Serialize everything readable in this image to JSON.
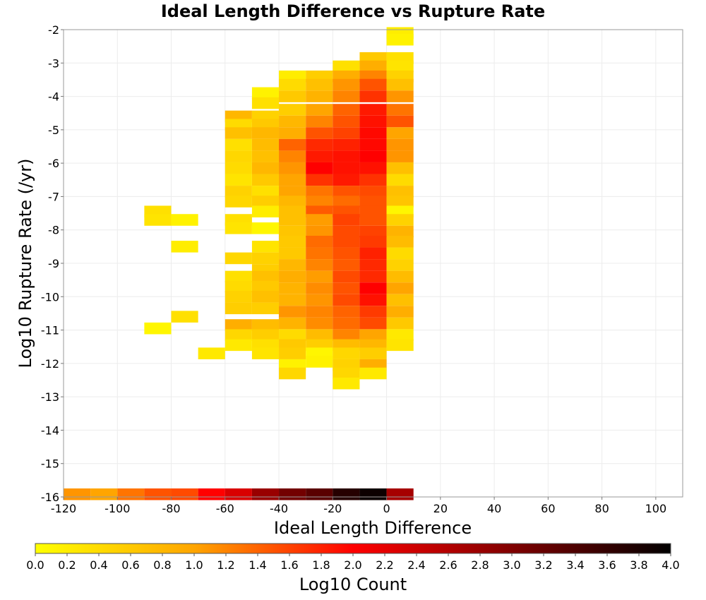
{
  "chart_data": {
    "type": "heatmap",
    "title": "Ideal Length Difference vs Rupture Rate",
    "xlabel": "Ideal Length Difference",
    "ylabel": "Log10 Rupture Rate (/yr)",
    "colorbar_label": "Log10 Count",
    "xlim": [
      -120,
      110
    ],
    "ylim": [
      -16,
      -2
    ],
    "x_ticks": [
      "-120",
      "-100",
      "-80",
      "-60",
      "-40",
      "-20",
      "0",
      "20",
      "40",
      "60",
      "80",
      "100"
    ],
    "y_ticks": [
      "-2",
      "-3",
      "-4",
      "-5",
      "-6",
      "-7",
      "-8",
      "-9",
      "-10",
      "-11",
      "-12",
      "-13",
      "-14",
      "-15",
      "-16"
    ],
    "colorbar_ticks": [
      "0.0",
      "0.2",
      "0.4",
      "0.6",
      "0.8",
      "1.0",
      "1.2",
      "1.4",
      "1.6",
      "1.8",
      "2.0",
      "2.2",
      "2.4",
      "2.6",
      "2.8",
      "3.0",
      "3.2",
      "3.4",
      "3.6",
      "3.8",
      "4.0"
    ],
    "colorbar_range": [
      0,
      4
    ],
    "grid": true,
    "bin_width_x": 10,
    "bin_height_y": 0.35,
    "x_bin_centers": [
      -115,
      -105,
      -95,
      -85,
      -75,
      -65,
      -55,
      -45,
      -35,
      -25,
      -15,
      -5,
      5
    ],
    "cells": [
      {
        "x": 5,
        "y": -2.1,
        "v": 0.2
      },
      {
        "x": 5,
        "y": -2.3,
        "v": 0.15
      },
      {
        "x": -5,
        "y": -2.85,
        "v": 0.6
      },
      {
        "x": 5,
        "y": -2.85,
        "v": 0.35
      },
      {
        "x": -15,
        "y": -3.1,
        "v": 0.35
      },
      {
        "x": -5,
        "y": -3.1,
        "v": 0.9
      },
      {
        "x": 5,
        "y": -3.1,
        "v": 0.3
      },
      {
        "x": -35,
        "y": -3.4,
        "v": 0.2
      },
      {
        "x": -25,
        "y": -3.4,
        "v": 0.55
      },
      {
        "x": -15,
        "y": -3.4,
        "v": 0.9
      },
      {
        "x": -5,
        "y": -3.4,
        "v": 1.2
      },
      {
        "x": 5,
        "y": -3.4,
        "v": 0.5
      },
      {
        "x": -45,
        "y": -3.9,
        "v": 0.15
      },
      {
        "x": -35,
        "y": -3.65,
        "v": 0.4
      },
      {
        "x": -25,
        "y": -3.65,
        "v": 0.7
      },
      {
        "x": -15,
        "y": -3.65,
        "v": 1.1
      },
      {
        "x": -5,
        "y": -3.65,
        "v": 1.5
      },
      {
        "x": 5,
        "y": -3.65,
        "v": 0.7
      },
      {
        "x": -45,
        "y": -4.2,
        "v": 0.35
      },
      {
        "x": -35,
        "y": -4.0,
        "v": 0.6
      },
      {
        "x": -25,
        "y": -4.0,
        "v": 0.85
      },
      {
        "x": -15,
        "y": -4.0,
        "v": 1.2
      },
      {
        "x": -5,
        "y": -4.0,
        "v": 1.7
      },
      {
        "x": 5,
        "y": -4.0,
        "v": 1.1
      },
      {
        "x": -55,
        "y": -4.6,
        "v": 0.8
      },
      {
        "x": -45,
        "y": -4.6,
        "v": 0.5
      },
      {
        "x": -35,
        "y": -4.4,
        "v": 0.55
      },
      {
        "x": -25,
        "y": -4.4,
        "v": 1.0
      },
      {
        "x": -15,
        "y": -4.4,
        "v": 1.4
      },
      {
        "x": -5,
        "y": -4.4,
        "v": 1.85
      },
      {
        "x": 5,
        "y": -4.4,
        "v": 1.3
      },
      {
        "x": -55,
        "y": -4.85,
        "v": 0.4
      },
      {
        "x": -45,
        "y": -4.85,
        "v": 0.6
      },
      {
        "x": -35,
        "y": -4.75,
        "v": 0.8
      },
      {
        "x": -25,
        "y": -4.75,
        "v": 1.2
      },
      {
        "x": -15,
        "y": -4.75,
        "v": 1.5
      },
      {
        "x": -5,
        "y": -4.75,
        "v": 1.9
      },
      {
        "x": 5,
        "y": -4.75,
        "v": 1.5
      },
      {
        "x": -55,
        "y": -5.1,
        "v": 0.7
      },
      {
        "x": -45,
        "y": -5.1,
        "v": 0.8
      },
      {
        "x": -35,
        "y": -5.1,
        "v": 0.9
      },
      {
        "x": -25,
        "y": -5.1,
        "v": 1.5
      },
      {
        "x": -15,
        "y": -5.1,
        "v": 1.6
      },
      {
        "x": -5,
        "y": -5.1,
        "v": 1.95
      },
      {
        "x": 5,
        "y": -5.1,
        "v": 1.0
      },
      {
        "x": -55,
        "y": -5.45,
        "v": 0.35
      },
      {
        "x": -45,
        "y": -5.45,
        "v": 0.75
      },
      {
        "x": -35,
        "y": -5.45,
        "v": 1.4
      },
      {
        "x": -25,
        "y": -5.45,
        "v": 1.75
      },
      {
        "x": -15,
        "y": -5.45,
        "v": 1.8
      },
      {
        "x": -5,
        "y": -5.45,
        "v": 1.95
      },
      {
        "x": 5,
        "y": -5.45,
        "v": 1.1
      },
      {
        "x": -55,
        "y": -5.8,
        "v": 0.45
      },
      {
        "x": -45,
        "y": -5.8,
        "v": 0.7
      },
      {
        "x": -35,
        "y": -5.8,
        "v": 1.2
      },
      {
        "x": -25,
        "y": -5.8,
        "v": 1.85
      },
      {
        "x": -15,
        "y": -5.8,
        "v": 1.9
      },
      {
        "x": -5,
        "y": -5.8,
        "v": 2.0
      },
      {
        "x": 5,
        "y": -5.8,
        "v": 1.1
      },
      {
        "x": -55,
        "y": -6.15,
        "v": 0.4
      },
      {
        "x": -45,
        "y": -6.15,
        "v": 0.8
      },
      {
        "x": -35,
        "y": -6.15,
        "v": 1.1
      },
      {
        "x": -25,
        "y": -6.15,
        "v": 2.0
      },
      {
        "x": -15,
        "y": -6.15,
        "v": 1.9
      },
      {
        "x": -5,
        "y": -6.15,
        "v": 1.9
      },
      {
        "x": 5,
        "y": -6.15,
        "v": 0.7
      },
      {
        "x": -55,
        "y": -6.5,
        "v": 0.3
      },
      {
        "x": -45,
        "y": -6.5,
        "v": 0.6
      },
      {
        "x": -35,
        "y": -6.5,
        "v": 1.0
      },
      {
        "x": -25,
        "y": -6.5,
        "v": 1.7
      },
      {
        "x": -15,
        "y": -6.5,
        "v": 1.85
      },
      {
        "x": -5,
        "y": -6.5,
        "v": 1.7
      },
      {
        "x": 5,
        "y": -6.5,
        "v": 0.4
      },
      {
        "x": -55,
        "y": -6.85,
        "v": 0.5
      },
      {
        "x": -45,
        "y": -6.85,
        "v": 0.35
      },
      {
        "x": -35,
        "y": -6.85,
        "v": 1.0
      },
      {
        "x": -25,
        "y": -6.85,
        "v": 1.3
      },
      {
        "x": -15,
        "y": -6.85,
        "v": 1.5
      },
      {
        "x": -5,
        "y": -6.85,
        "v": 1.55
      },
      {
        "x": 5,
        "y": -6.85,
        "v": 0.7
      },
      {
        "x": -55,
        "y": -7.15,
        "v": 0.45
      },
      {
        "x": -45,
        "y": -7.15,
        "v": 0.55
      },
      {
        "x": -35,
        "y": -7.15,
        "v": 0.8
      },
      {
        "x": -25,
        "y": -7.15,
        "v": 1.2
      },
      {
        "x": -15,
        "y": -7.15,
        "v": 1.35
      },
      {
        "x": -5,
        "y": -7.15,
        "v": 1.5
      },
      {
        "x": 5,
        "y": -7.15,
        "v": 0.65
      },
      {
        "x": -85,
        "y": -7.45,
        "v": 0.35
      },
      {
        "x": -45,
        "y": -7.45,
        "v": 0.2
      },
      {
        "x": -35,
        "y": -7.45,
        "v": 0.7
      },
      {
        "x": -25,
        "y": -7.45,
        "v": 1.45
      },
      {
        "x": -15,
        "y": -7.45,
        "v": 1.5
      },
      {
        "x": -5,
        "y": -7.45,
        "v": 1.5
      },
      {
        "x": 5,
        "y": -7.45,
        "v": 0.1
      },
      {
        "x": -85,
        "y": -7.7,
        "v": 0.3
      },
      {
        "x": -75,
        "y": -7.7,
        "v": 0.15
      },
      {
        "x": -55,
        "y": -7.7,
        "v": 0.35
      },
      {
        "x": -35,
        "y": -7.7,
        "v": 0.7
      },
      {
        "x": -25,
        "y": -7.7,
        "v": 1.05
      },
      {
        "x": -15,
        "y": -7.7,
        "v": 1.6
      },
      {
        "x": -5,
        "y": -7.7,
        "v": 1.5
      },
      {
        "x": 5,
        "y": -7.7,
        "v": 0.5
      },
      {
        "x": -55,
        "y": -7.95,
        "v": 0.3
      },
      {
        "x": -45,
        "y": -7.95,
        "v": 0.1
      },
      {
        "x": -35,
        "y": -8.05,
        "v": 0.65
      },
      {
        "x": -25,
        "y": -8.05,
        "v": 1.1
      },
      {
        "x": -15,
        "y": -8.05,
        "v": 1.55
      },
      {
        "x": -5,
        "y": -8.05,
        "v": 1.6
      },
      {
        "x": 5,
        "y": -8.05,
        "v": 0.85
      },
      {
        "x": -35,
        "y": -8.35,
        "v": 0.6
      },
      {
        "x": -25,
        "y": -8.35,
        "v": 1.35
      },
      {
        "x": -15,
        "y": -8.35,
        "v": 1.55
      },
      {
        "x": -5,
        "y": -8.35,
        "v": 1.65
      },
      {
        "x": 5,
        "y": -8.35,
        "v": 0.75
      },
      {
        "x": -75,
        "y": -8.5,
        "v": 0.2
      },
      {
        "x": -45,
        "y": -8.5,
        "v": 0.3
      },
      {
        "x": -35,
        "y": -8.7,
        "v": 0.6
      },
      {
        "x": -25,
        "y": -8.7,
        "v": 1.3
      },
      {
        "x": -15,
        "y": -8.7,
        "v": 1.5
      },
      {
        "x": -5,
        "y": -8.7,
        "v": 1.8
      },
      {
        "x": 5,
        "y": -8.7,
        "v": 0.4
      },
      {
        "x": -55,
        "y": -8.85,
        "v": 0.45
      },
      {
        "x": -45,
        "y": -8.85,
        "v": 0.5
      },
      {
        "x": -35,
        "y": -9.05,
        "v": 0.8
      },
      {
        "x": -25,
        "y": -9.05,
        "v": 1.2
      },
      {
        "x": -15,
        "y": -9.05,
        "v": 1.45
      },
      {
        "x": -5,
        "y": -9.05,
        "v": 1.75
      },
      {
        "x": 5,
        "y": -9.05,
        "v": 0.5
      },
      {
        "x": -45,
        "y": -9.2,
        "v": 0.55
      },
      {
        "x": -55,
        "y": -9.4,
        "v": 0.35
      },
      {
        "x": -45,
        "y": -9.4,
        "v": 0.7
      },
      {
        "x": -35,
        "y": -9.4,
        "v": 0.9
      },
      {
        "x": -25,
        "y": -9.4,
        "v": 1.05
      },
      {
        "x": -15,
        "y": -9.4,
        "v": 1.55
      },
      {
        "x": -5,
        "y": -9.4,
        "v": 1.75
      },
      {
        "x": 5,
        "y": -9.4,
        "v": 0.75
      },
      {
        "x": -55,
        "y": -9.7,
        "v": 0.4
      },
      {
        "x": -45,
        "y": -9.7,
        "v": 0.6
      },
      {
        "x": -35,
        "y": -9.75,
        "v": 0.85
      },
      {
        "x": -25,
        "y": -9.75,
        "v": 1.15
      },
      {
        "x": -15,
        "y": -9.75,
        "v": 1.5
      },
      {
        "x": -5,
        "y": -9.75,
        "v": 2.0
      },
      {
        "x": 5,
        "y": -9.75,
        "v": 1.0
      },
      {
        "x": -55,
        "y": -10.0,
        "v": 0.5
      },
      {
        "x": -45,
        "y": -10.0,
        "v": 0.7
      },
      {
        "x": -35,
        "y": -10.1,
        "v": 0.85
      },
      {
        "x": -25,
        "y": -10.1,
        "v": 1.1
      },
      {
        "x": -15,
        "y": -10.1,
        "v": 1.55
      },
      {
        "x": -5,
        "y": -10.1,
        "v": 1.9
      },
      {
        "x": 5,
        "y": -10.1,
        "v": 0.7
      },
      {
        "x": -55,
        "y": -10.35,
        "v": 0.55
      },
      {
        "x": -45,
        "y": -10.35,
        "v": 0.55
      },
      {
        "x": -35,
        "y": -10.45,
        "v": 1.1
      },
      {
        "x": -25,
        "y": -10.45,
        "v": 1.2
      },
      {
        "x": -15,
        "y": -10.45,
        "v": 1.4
      },
      {
        "x": -5,
        "y": -10.45,
        "v": 1.65
      },
      {
        "x": 5,
        "y": -10.45,
        "v": 0.9
      },
      {
        "x": -75,
        "y": -10.6,
        "v": 0.35
      },
      {
        "x": -85,
        "y": -10.95,
        "v": 0.1
      },
      {
        "x": -55,
        "y": -10.85,
        "v": 0.9
      },
      {
        "x": -45,
        "y": -10.85,
        "v": 0.75
      },
      {
        "x": -35,
        "y": -10.8,
        "v": 0.85
      },
      {
        "x": -25,
        "y": -10.8,
        "v": 1.15
      },
      {
        "x": -15,
        "y": -10.8,
        "v": 1.35
      },
      {
        "x": -5,
        "y": -10.8,
        "v": 1.55
      },
      {
        "x": 5,
        "y": -10.8,
        "v": 0.6
      },
      {
        "x": -55,
        "y": -11.15,
        "v": 0.45
      },
      {
        "x": -45,
        "y": -11.15,
        "v": 0.55
      },
      {
        "x": -35,
        "y": -11.15,
        "v": 0.4
      },
      {
        "x": -25,
        "y": -11.15,
        "v": 0.75
      },
      {
        "x": -15,
        "y": -11.15,
        "v": 1.2
      },
      {
        "x": -5,
        "y": -11.15,
        "v": 1.0
      },
      {
        "x": 5,
        "y": -11.15,
        "v": 0.25
      },
      {
        "x": -55,
        "y": -11.45,
        "v": 0.25
      },
      {
        "x": -45,
        "y": -11.45,
        "v": 0.35
      },
      {
        "x": -35,
        "y": -11.45,
        "v": 0.6
      },
      {
        "x": -25,
        "y": -11.45,
        "v": 0.55
      },
      {
        "x": -15,
        "y": -11.45,
        "v": 0.75
      },
      {
        "x": -5,
        "y": -11.45,
        "v": 0.8
      },
      {
        "x": 5,
        "y": -11.45,
        "v": 0.3
      },
      {
        "x": -65,
        "y": -11.7,
        "v": 0.25
      },
      {
        "x": -45,
        "y": -11.7,
        "v": 0.3
      },
      {
        "x": -35,
        "y": -11.7,
        "v": 0.55
      },
      {
        "x": -25,
        "y": -11.7,
        "v": 0.1
      },
      {
        "x": -15,
        "y": -11.7,
        "v": 0.45
      },
      {
        "x": -5,
        "y": -11.7,
        "v": 0.55
      },
      {
        "x": -35,
        "y": -12.05,
        "v": 0.15
      },
      {
        "x": -25,
        "y": -11.95,
        "v": 0.15
      },
      {
        "x": -15,
        "y": -12.05,
        "v": 0.5
      },
      {
        "x": -5,
        "y": -12.05,
        "v": 0.9
      },
      {
        "x": -35,
        "y": -12.3,
        "v": 0.45
      },
      {
        "x": -15,
        "y": -12.3,
        "v": 0.45
      },
      {
        "x": -5,
        "y": -12.3,
        "v": 0.25
      },
      {
        "x": -15,
        "y": -12.6,
        "v": 0.25
      },
      {
        "x": -115,
        "y": -15.92,
        "v": 1.1
      },
      {
        "x": -105,
        "y": -15.92,
        "v": 1.0
      },
      {
        "x": -95,
        "y": -15.92,
        "v": 1.3
      },
      {
        "x": -85,
        "y": -15.92,
        "v": 1.5
      },
      {
        "x": -75,
        "y": -15.92,
        "v": 1.55
      },
      {
        "x": -65,
        "y": -15.92,
        "v": 2.0
      },
      {
        "x": -55,
        "y": -15.92,
        "v": 2.3
      },
      {
        "x": -45,
        "y": -15.92,
        "v": 2.8
      },
      {
        "x": -35,
        "y": -15.92,
        "v": 3.1
      },
      {
        "x": -25,
        "y": -15.92,
        "v": 3.3
      },
      {
        "x": -15,
        "y": -15.92,
        "v": 3.7
      },
      {
        "x": -5,
        "y": -15.92,
        "v": 3.9
      },
      {
        "x": 5,
        "y": -15.92,
        "v": 2.7
      }
    ]
  }
}
